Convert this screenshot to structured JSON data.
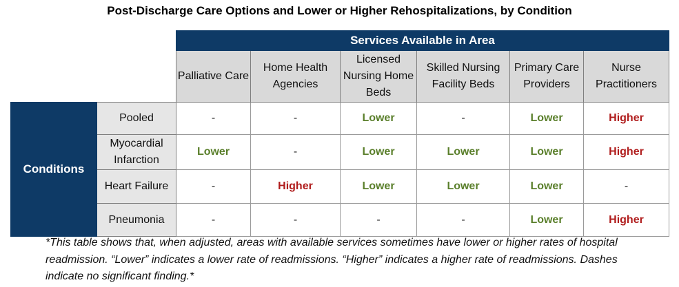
{
  "title": "Post-Discharge Care Options and Lower or Higher Rehospitalizations, by Condition",
  "services_header": "Services Available in Area",
  "conditions_header": "Conditions",
  "columns": [
    "Palliative Care",
    "Home Health Agencies",
    "Licensed Nursing Home Beds",
    "Skilled Nursing Facility Beds",
    "Primary Care Providers",
    "Nurse Practitioners"
  ],
  "rows": [
    {
      "label": "Pooled",
      "cells": [
        "-",
        "-",
        "Lower",
        "-",
        "Lower",
        "Higher"
      ]
    },
    {
      "label": "Myocardial Infarction",
      "cells": [
        "Lower",
        "-",
        "Lower",
        "Lower",
        "Lower",
        "Higher"
      ]
    },
    {
      "label": "Heart Failure",
      "cells": [
        "-",
        "Higher",
        "Lower",
        "Lower",
        "Lower",
        "-"
      ]
    },
    {
      "label": "Pneumonia",
      "cells": [
        "-",
        "-",
        "-",
        "-",
        "Lower",
        "Higher"
      ]
    }
  ],
  "colors": {
    "navy": "#0e3a66",
    "lower": "#5a7f2b",
    "higher": "#b01c1c",
    "header_gray": "#d9d9d9"
  },
  "footnote": "*This table shows that, when adjusted, areas with available services sometimes have lower or higher rates of hospital readmission. “Lower” indicates a lower rate of readmissions. “Higher” indicates a higher rate of readmissions. Dashes indicate no significant finding.*"
}
